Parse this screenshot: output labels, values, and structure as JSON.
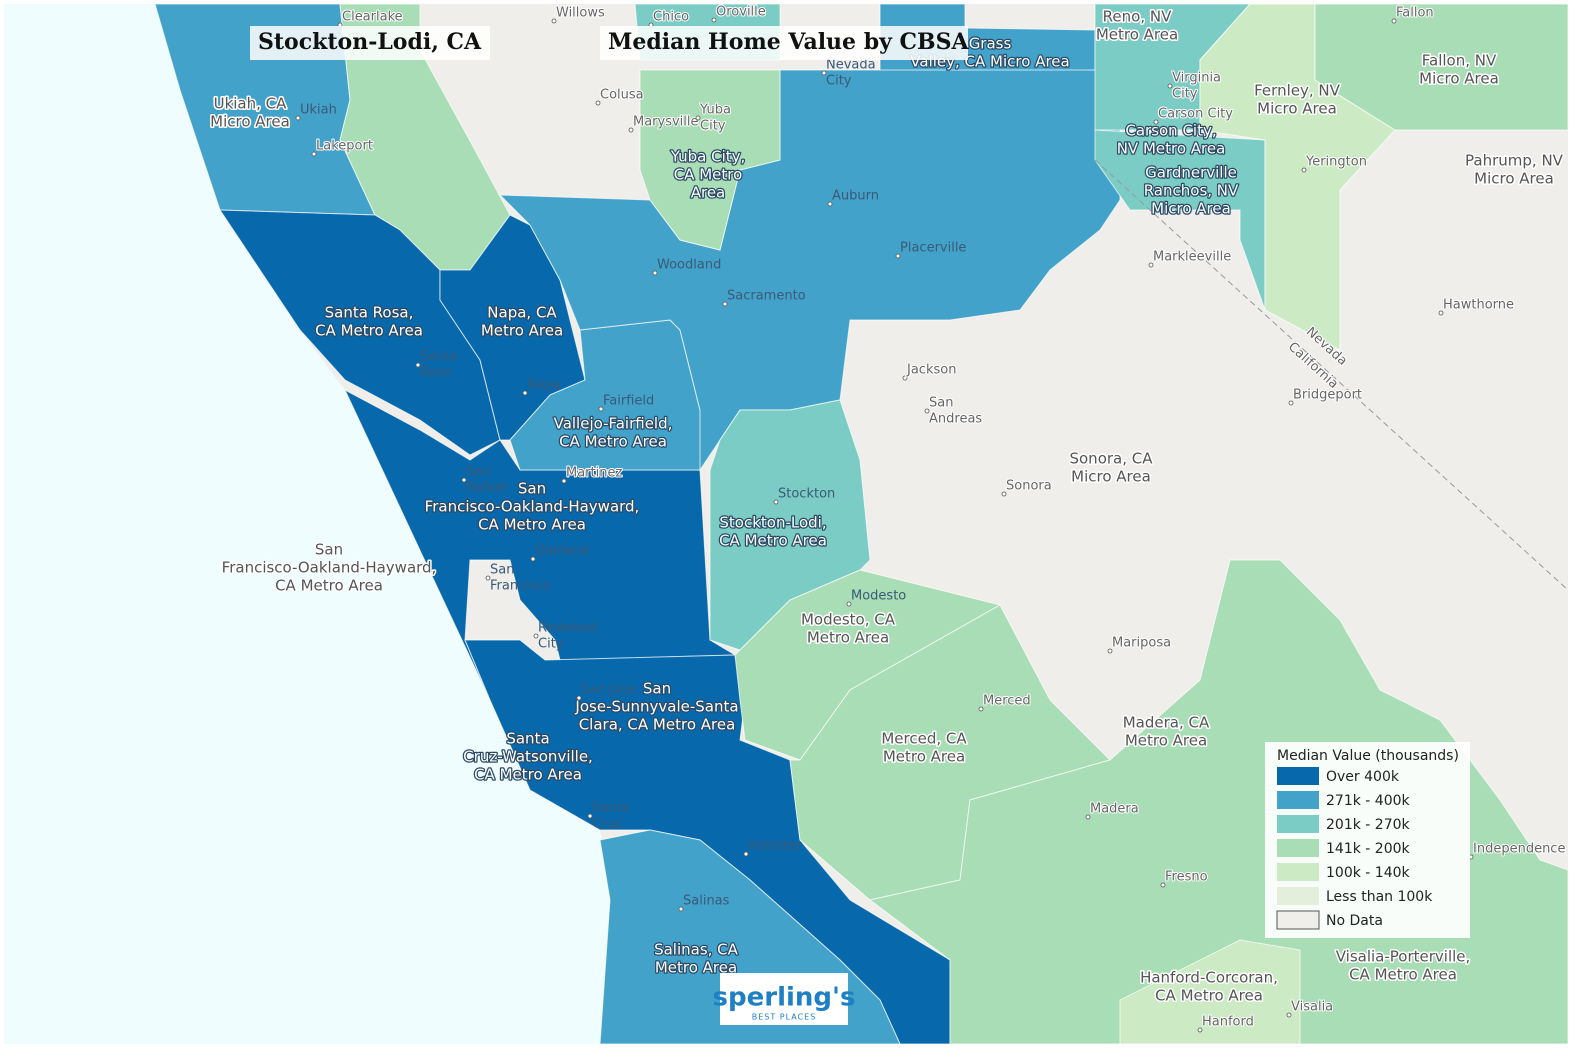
{
  "title": "Stockton-Lodi, CA",
  "subtitle": "Median Home Value by CBSA",
  "legend": {
    "title": "Median Value (thousands)",
    "items": [
      {
        "label": "Over 400k",
        "color": "#0868ac"
      },
      {
        "label": "271k - 400k",
        "color": "#43a2ca"
      },
      {
        "label": "201k - 270k",
        "color": "#7bccc4"
      },
      {
        "label": "141k - 200k",
        "color": "#a8ddb5"
      },
      {
        "label": "100k - 140k",
        "color": "#ccebc5"
      },
      {
        "label": "Less than 100k",
        "color": "#e3eedb"
      },
      {
        "label": "No Data",
        "color": "#efeeea"
      }
    ]
  },
  "regions": [
    {
      "lines": [
        "Ukiah, CA",
        "Micro Area"
      ]
    },
    {
      "lines": [
        "Santa Rosa,",
        "CA Metro Area"
      ]
    },
    {
      "lines": [
        "Napa, CA",
        "Metro Area"
      ]
    },
    {
      "lines": [
        "Vallejo-Fairfield,",
        "CA Metro Area"
      ]
    },
    {
      "lines": [
        "San",
        "Francisco-Oakland-Hayward,",
        "CA Metro Area"
      ]
    },
    {
      "lines": [
        "San",
        "Francisco-Oakland-Hayward,",
        "CA Metro Area"
      ]
    },
    {
      "lines": [
        "Stockton-Lodi,",
        "CA Metro Area"
      ]
    },
    {
      "lines": [
        "Modesto, CA",
        "Metro Area"
      ]
    },
    {
      "lines": [
        "San",
        "Jose-Sunnyvale-Santa",
        "Clara, CA Metro Area"
      ]
    },
    {
      "lines": [
        "Santa",
        "Cruz-Watsonville,",
        "CA Metro Area"
      ]
    },
    {
      "lines": [
        "Salinas, CA",
        "Metro Area"
      ]
    },
    {
      "lines": [
        "Merced, CA",
        "Metro Area"
      ]
    },
    {
      "lines": [
        "Madera, CA",
        "Metro Area"
      ]
    },
    {
      "lines": [
        "Yuba City,",
        "CA Metro",
        "Area"
      ]
    },
    {
      "lines": [
        "Reno, NV",
        "Metro Area"
      ]
    },
    {
      "lines": [
        "Carson City,",
        "NV Metro Area"
      ]
    },
    {
      "lines": [
        "Gardnerville",
        "Ranchos, NV",
        "Micro Area"
      ]
    },
    {
      "lines": [
        "Fernley, NV",
        "Micro Area"
      ]
    },
    {
      "lines": [
        "Fallon, NV",
        "Micro Area"
      ]
    },
    {
      "lines": [
        "Pahrump, NV",
        "Micro Area"
      ]
    },
    {
      "lines": [
        "Sonora, CA",
        "Micro Area"
      ]
    },
    {
      "lines": [
        "Hanford-Corcoran,",
        "CA Metro Area"
      ]
    },
    {
      "lines": [
        "Visalia-Porterville,",
        "CA Metro Area"
      ]
    },
    {
      "lines": [
        "Grass",
        "Valley, CA Micro Area"
      ]
    }
  ],
  "places": [
    {
      "lines": [
        "Clearlake"
      ]
    },
    {
      "lines": [
        "Willows"
      ]
    },
    {
      "lines": [
        "Chico"
      ]
    },
    {
      "lines": [
        "Oroville"
      ]
    },
    {
      "lines": [
        "Ukiah"
      ]
    },
    {
      "lines": [
        "Lakeport"
      ]
    },
    {
      "lines": [
        "Colusa"
      ]
    },
    {
      "lines": [
        "Marysville"
      ]
    },
    {
      "lines": [
        "Yuba",
        "City"
      ]
    },
    {
      "lines": [
        "Nevada",
        "City"
      ]
    },
    {
      "lines": [
        "Auburn"
      ]
    },
    {
      "lines": [
        "Placerville"
      ]
    },
    {
      "lines": [
        "Woodland"
      ]
    },
    {
      "lines": [
        "Sacramento"
      ]
    },
    {
      "lines": [
        "Santa",
        "Rosa"
      ]
    },
    {
      "lines": [
        "Napa"
      ]
    },
    {
      "lines": [
        "Fairfield"
      ]
    },
    {
      "lines": [
        "Martinez"
      ]
    },
    {
      "lines": [
        "San",
        "Rafael"
      ]
    },
    {
      "lines": [
        "Oakland"
      ]
    },
    {
      "lines": [
        "San",
        "Francisco"
      ]
    },
    {
      "lines": [
        "Redwood",
        "City"
      ]
    },
    {
      "lines": [
        "San Jose"
      ]
    },
    {
      "lines": [
        "Santa",
        "Cruz"
      ]
    },
    {
      "lines": [
        "Hollister"
      ]
    },
    {
      "lines": [
        "Salinas"
      ]
    },
    {
      "lines": [
        "Stockton"
      ]
    },
    {
      "lines": [
        "Modesto"
      ]
    },
    {
      "lines": [
        "Merced"
      ]
    },
    {
      "lines": [
        "Madera"
      ]
    },
    {
      "lines": [
        "Fresno"
      ]
    },
    {
      "lines": [
        "Mariposa"
      ]
    },
    {
      "lines": [
        "Sonora"
      ]
    },
    {
      "lines": [
        "San",
        "Andreas"
      ]
    },
    {
      "lines": [
        "Jackson"
      ]
    },
    {
      "lines": [
        "Markleeville"
      ]
    },
    {
      "lines": [
        "Bridgeport"
      ]
    },
    {
      "lines": [
        "Hawthorne"
      ]
    },
    {
      "lines": [
        "Yerington"
      ]
    },
    {
      "lines": [
        "Fallon"
      ]
    },
    {
      "lines": [
        "Virginia",
        "City"
      ]
    },
    {
      "lines": [
        "Carson City"
      ]
    },
    {
      "lines": [
        "Independence"
      ]
    },
    {
      "lines": [
        "Visalia"
      ]
    },
    {
      "lines": [
        "Hanford"
      ]
    }
  ],
  "state_line": [
    "Nevada",
    "California"
  ],
  "logo": {
    "name": "sperling's",
    "tagline": "BEST PLACES"
  }
}
